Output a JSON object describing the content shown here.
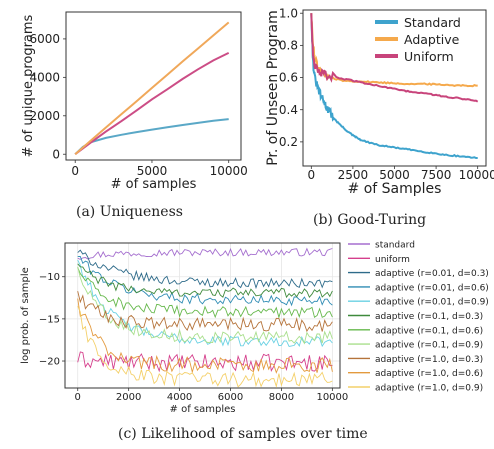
{
  "chart_data": [
    {
      "type": "line",
      "caption": "(a) Uniqueness",
      "xlabel": "# of samples",
      "ylabel": "# of unique programs",
      "xlim": [
        -600,
        10800
      ],
      "ylim": [
        -300,
        7400
      ],
      "xticks": [
        0,
        5000,
        10000
      ],
      "yticks": [
        0,
        2000,
        4000,
        6000
      ],
      "xtick_labels": [
        "0",
        "5000",
        "10000"
      ],
      "ytick_labels": [
        "0",
        "2000",
        "4000",
        "6000"
      ],
      "grid": false,
      "series": [
        {
          "color": "#5aa8c7",
          "x": [
            0,
            500,
            1000,
            2000,
            3000,
            4000,
            5000,
            6000,
            7000,
            8000,
            9000,
            10000
          ],
          "y": [
            0,
            380,
            620,
            850,
            1010,
            1150,
            1280,
            1400,
            1520,
            1630,
            1740,
            1830
          ]
        },
        {
          "color": "#cc4d86",
          "x": [
            0,
            1000,
            2000,
            3000,
            4000,
            5000,
            6000,
            7000,
            8000,
            9000,
            10000
          ],
          "y": [
            0,
            600,
            1180,
            1720,
            2280,
            2860,
            3380,
            3920,
            4420,
            4880,
            5270
          ]
        },
        {
          "color": "#f0a85a",
          "x": [
            0,
            1000,
            2000,
            3000,
            4000,
            5000,
            6000,
            7000,
            8000,
            9000,
            10000
          ],
          "y": [
            0,
            700,
            1390,
            2080,
            2760,
            3450,
            4140,
            4830,
            5500,
            6180,
            6860
          ]
        }
      ]
    },
    {
      "type": "line",
      "caption": "(b) Good-Turing",
      "xlabel": "# of Samples",
      "ylabel": "Pr. of Unseen Program",
      "xlim": [
        -500,
        10500
      ],
      "ylim": [
        0.05,
        1.02
      ],
      "xticks": [
        0,
        2500,
        5000,
        7500,
        10000
      ],
      "yticks": [
        0.2,
        0.4,
        0.6,
        0.8,
        1.0
      ],
      "xtick_labels": [
        "0",
        "2500",
        "5000",
        "7500",
        "10000"
      ],
      "ytick_labels": [
        "0.2",
        "0.4",
        "0.6",
        "0.8",
        "1.0"
      ],
      "grid": false,
      "legend_position": "top-right",
      "series": [
        {
          "name": "Standard",
          "color": "#3ea3cd",
          "x": [
            0,
            100,
            200,
            400,
            600,
            800,
            1000,
            1500,
            2000,
            2500,
            3000,
            4000,
            5000,
            6000,
            7000,
            8000,
            9000,
            10000
          ],
          "y": [
            1.0,
            0.7,
            0.6,
            0.53,
            0.48,
            0.44,
            0.4,
            0.33,
            0.28,
            0.24,
            0.21,
            0.18,
            0.165,
            0.15,
            0.135,
            0.12,
            0.11,
            0.1
          ]
        },
        {
          "name": "Adaptive",
          "color": "#f5a94c",
          "x": [
            0,
            100,
            200,
            400,
            700,
            1000,
            2000,
            3000,
            4000,
            5000,
            6000,
            7000,
            8000,
            9000,
            10000
          ],
          "y": [
            1.0,
            0.8,
            0.72,
            0.66,
            0.62,
            0.6,
            0.58,
            0.575,
            0.57,
            0.565,
            0.56,
            0.56,
            0.555,
            0.55,
            0.55
          ]
        },
        {
          "name": "Uniform",
          "color": "#c8447b",
          "x": [
            0,
            100,
            200,
            400,
            700,
            1000,
            2000,
            3000,
            4000,
            5000,
            6000,
            7000,
            8000,
            9000,
            10000
          ],
          "y": [
            1.0,
            0.75,
            0.68,
            0.64,
            0.62,
            0.61,
            0.59,
            0.57,
            0.55,
            0.53,
            0.51,
            0.5,
            0.48,
            0.47,
            0.45
          ]
        }
      ]
    },
    {
      "type": "line",
      "caption": "(c) Likelihood of samples over time",
      "xlabel": "# of samples",
      "ylabel": "log prob. of sample",
      "xlim": [
        -500,
        10300
      ],
      "ylim": [
        -23.2,
        -6.0
      ],
      "xticks": [
        0,
        2000,
        4000,
        6000,
        8000,
        10000
      ],
      "yticks": [
        -10,
        -15,
        -20
      ],
      "xtick_labels": [
        "0",
        "2000",
        "4000",
        "6000",
        "8000",
        "10000"
      ],
      "ytick_labels": [
        "−10",
        "−15",
        "−20"
      ],
      "grid": true,
      "legend_position": "outside-right",
      "series": [
        {
          "name": "standard",
          "color": "#a56fcf",
          "start": -7.6,
          "end": -7.1,
          "k": 0.4,
          "noise": 0.45
        },
        {
          "name": "uniform",
          "color": "#d53f8c",
          "start": -19.8,
          "end": -20.2,
          "k": 0.3,
          "noise": 1.0
        },
        {
          "name": "adaptive (r=0.01, d=0.3)",
          "color": "#2e6b8a",
          "start": -7.0,
          "end": -10.8,
          "k": 0.45,
          "noise": 0.55
        },
        {
          "name": "adaptive (r=0.01, d=0.6)",
          "color": "#2f8cb4",
          "start": -7.5,
          "end": -12.8,
          "k": 0.4,
          "noise": 0.6
        },
        {
          "name": "adaptive (r=0.01, d=0.9)",
          "color": "#6ad1e3",
          "start": -8.0,
          "end": -17.7,
          "k": 0.35,
          "noise": 0.6
        },
        {
          "name": "adaptive (r=0.1, d=0.3)",
          "color": "#3f8a3c",
          "start": -8.5,
          "end": -11.9,
          "k": 0.3,
          "noise": 0.55
        },
        {
          "name": "adaptive (r=0.1, d=0.6)",
          "color": "#66b84c",
          "start": -9.0,
          "end": -14.2,
          "k": 0.3,
          "noise": 0.65
        },
        {
          "name": "adaptive (r=0.1, d=0.9)",
          "color": "#a9df8c",
          "start": -9.0,
          "end": -17.2,
          "k": 0.3,
          "noise": 0.7
        },
        {
          "name": "adaptive (r=1.0, d=0.3)",
          "color": "#b5733a",
          "start": -12.0,
          "end": -15.7,
          "k": 0.25,
          "noise": 0.8
        },
        {
          "name": "adaptive (r=1.0, d=0.6)",
          "color": "#e39a3e",
          "start": -13.0,
          "end": -20.5,
          "k": 0.25,
          "noise": 0.9
        },
        {
          "name": "adaptive (r=1.0, d=0.9)",
          "color": "#f4d06a",
          "start": -14.0,
          "end": -22.2,
          "k": 0.25,
          "noise": 0.9
        }
      ]
    }
  ]
}
